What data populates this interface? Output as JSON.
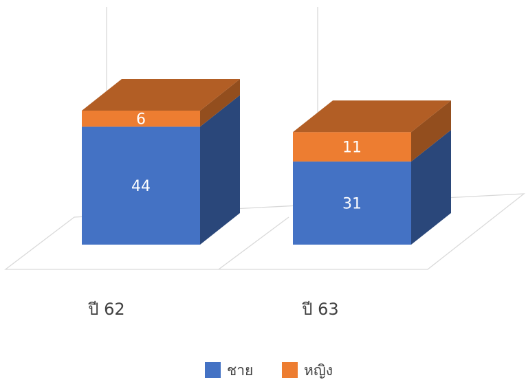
{
  "chart_data": {
    "type": "bar",
    "stacked": true,
    "three_d": true,
    "categories": [
      "ปี 62",
      "ปี 63"
    ],
    "series": [
      {
        "name": "ชาย",
        "values": [
          44,
          31
        ],
        "color": "#4472c4"
      },
      {
        "name": "หญิง",
        "values": [
          6,
          11
        ],
        "color": "#ed7d31"
      }
    ],
    "data_labels": true,
    "legend": "bottom",
    "grid": true,
    "ylim": [
      0,
      50
    ],
    "title": "",
    "xlabel": "",
    "ylabel": ""
  }
}
